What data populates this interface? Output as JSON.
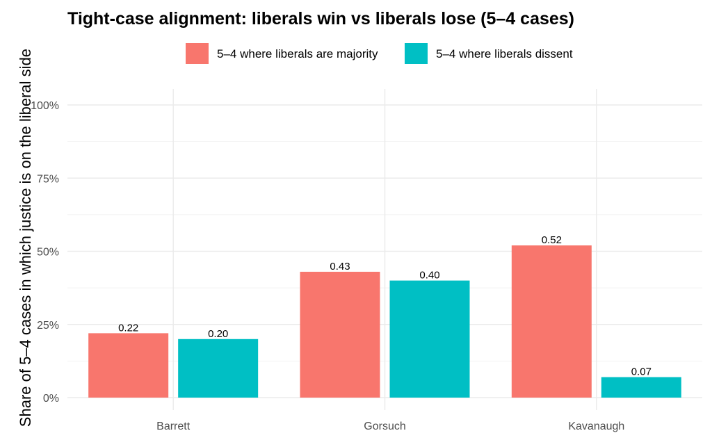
{
  "chart_data": {
    "type": "bar",
    "title": "Tight-case alignment: liberals win vs liberals lose (5–4 cases)",
    "xlabel": "",
    "ylabel": "Share of 5–4 cases in which justice is on the liberal side",
    "categories": [
      "Barrett",
      "Gorsuch",
      "Kavanaugh"
    ],
    "series": [
      {
        "name": "5–4 where liberals are majority",
        "color": "#F8766D",
        "values": [
          0.22,
          0.43,
          0.52
        ],
        "labels": [
          "0.22",
          "0.43",
          "0.52"
        ]
      },
      {
        "name": "5–4 where liberals dissent",
        "color": "#00BFC4",
        "values": [
          0.2,
          0.4,
          0.07
        ],
        "labels": [
          "0.20",
          "0.40",
          "0.07"
        ]
      }
    ],
    "ylim": [
      0,
      1
    ],
    "yticks": [
      0,
      0.25,
      0.5,
      0.75,
      1
    ],
    "ytick_labels": [
      "0%",
      "25%",
      "50%",
      "75%",
      "100%"
    ],
    "grid": true,
    "legend_position": "top"
  }
}
